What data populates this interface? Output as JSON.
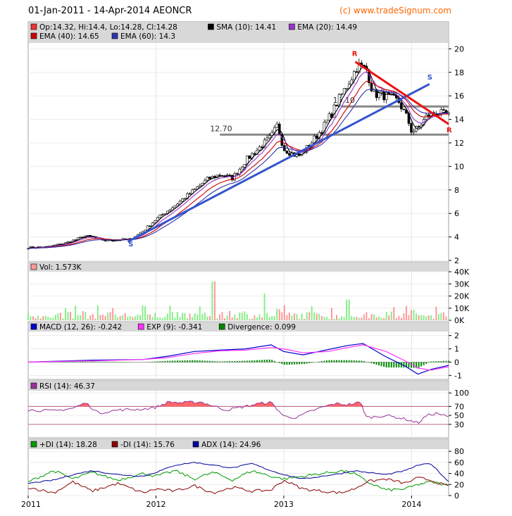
{
  "header": {
    "title": "01-Jan-2011 - 14-Apr-2014 AEONCR",
    "source": "(c) www.tradeSignum.com"
  },
  "colors": {
    "panel_bg": "#ffffff",
    "legend_bg": "#d8d8d8",
    "border": "#a0a0a0",
    "price_up": "#ffffff",
    "price_down": "#000000",
    "sma10": "#000000",
    "ema20": "#9933cc",
    "ema40": "#cc0000",
    "ema60": "#3333aa",
    "support": "#3355cc",
    "resistance": "#ee1111",
    "hline": "#888888",
    "vol_up": "#88ee88",
    "vol_down": "#ff9999",
    "macd": "#0000cc",
    "exp": "#ff33ff",
    "div": "#008800",
    "rsi": "#993399",
    "rsi_fill": "#ff6666",
    "plus_di": "#009900",
    "minus_di": "#880000",
    "adx": "#000099"
  },
  "x_axis": {
    "labels": [
      "2011",
      "2012",
      "2013",
      "2014"
    ]
  },
  "chart_data": [
    {
      "type": "candlestick",
      "panel": "price",
      "legend": [
        {
          "label": "Op:14.32, Hi:14.4, Lo:14.28, Cl:14.28",
          "color": "#ee3333"
        },
        {
          "label": "SMA (10): 14.41",
          "color": "#000000"
        },
        {
          "label": "EMA (20): 14.49",
          "color": "#9933cc"
        },
        {
          "label": "EMA (40): 14.65",
          "color": "#cc0000"
        },
        {
          "label": "EMA (60): 14.3",
          "color": "#3333aa"
        }
      ],
      "yticks": [
        "2",
        "4",
        "6",
        "8",
        "10",
        "12",
        "14",
        "16",
        "18",
        "20"
      ],
      "ylim": [
        2,
        20.5
      ],
      "x_range": [
        2011.0,
        2014.29
      ],
      "close_path": [
        [
          2011.0,
          3.1
        ],
        [
          2011.15,
          3.15
        ],
        [
          2011.3,
          3.5
        ],
        [
          2011.45,
          4.1
        ],
        [
          2011.6,
          3.7
        ],
        [
          2011.8,
          3.8
        ],
        [
          2011.9,
          4.5
        ],
        [
          2012.0,
          5.5
        ],
        [
          2012.15,
          6.7
        ],
        [
          2012.3,
          8.0
        ],
        [
          2012.4,
          8.9
        ],
        [
          2012.5,
          9.3
        ],
        [
          2012.6,
          9.0
        ],
        [
          2012.7,
          10.5
        ],
        [
          2012.8,
          11.5
        ],
        [
          2012.9,
          12.5
        ],
        [
          2012.95,
          13.5
        ],
        [
          2013.0,
          11.5
        ],
        [
          2013.08,
          11.0
        ],
        [
          2013.12,
          10.9
        ],
        [
          2013.2,
          11.8
        ],
        [
          2013.3,
          13.2
        ],
        [
          2013.38,
          14.6
        ],
        [
          2013.42,
          15.5
        ],
        [
          2013.5,
          17.0
        ],
        [
          2013.58,
          18.6
        ],
        [
          2013.65,
          18.2
        ],
        [
          2013.7,
          16.2
        ],
        [
          2013.8,
          16.0
        ],
        [
          2013.9,
          15.5
        ],
        [
          2013.97,
          14.0
        ],
        [
          2014.0,
          13.0
        ],
        [
          2014.05,
          13.2
        ],
        [
          2014.12,
          14.3
        ],
        [
          2014.2,
          14.6
        ],
        [
          2014.29,
          14.28
        ]
      ],
      "lines": [
        {
          "name": "15.10",
          "value": 15.1
        },
        {
          "name": "12.70",
          "value": 12.7
        }
      ],
      "annotations": [
        {
          "text": "S",
          "x": 2011.8,
          "y": 3.2
        },
        {
          "text": "S",
          "x": 2014.14,
          "y": 17.4
        },
        {
          "text": "R",
          "x": 2013.55,
          "y": 19.4
        },
        {
          "text": "R",
          "x": 2014.29,
          "y": 12.9
        }
      ]
    },
    {
      "type": "bar",
      "panel": "volume",
      "legend": [
        {
          "label": "Vol: 1.573K",
          "color": "#ff9999"
        }
      ],
      "yticks": [
        "0K",
        "10K",
        "20K",
        "30K",
        "40K"
      ],
      "ylim": [
        0,
        40
      ],
      "peaks": [
        {
          "x": 2012.45,
          "value": 32
        },
        {
          "x": 2012.85,
          "value": 22
        },
        {
          "x": 2013.5,
          "value": 17
        }
      ]
    },
    {
      "type": "line",
      "panel": "macd",
      "legend": [
        {
          "label": "MACD (12, 26): -0.242",
          "color": "#0000cc"
        },
        {
          "label": "EXP (9): -0.341",
          "color": "#ff33ff"
        },
        {
          "label": "Divergence: 0.099",
          "color": "#008800"
        }
      ],
      "yticks": [
        "-1",
        "0",
        "1",
        "2"
      ],
      "ylim": [
        -1.3,
        2.3
      ],
      "series": [
        {
          "name": "MACD",
          "points": [
            [
              2011.0,
              0.0
            ],
            [
              2011.5,
              0.15
            ],
            [
              2011.9,
              0.2
            ],
            [
              2012.1,
              0.45
            ],
            [
              2012.3,
              0.8
            ],
            [
              2012.5,
              0.9
            ],
            [
              2012.7,
              1.0
            ],
            [
              2012.9,
              1.3
            ],
            [
              2013.0,
              0.8
            ],
            [
              2013.15,
              0.55
            ],
            [
              2013.35,
              0.95
            ],
            [
              2013.5,
              1.25
            ],
            [
              2013.62,
              1.4
            ],
            [
              2013.8,
              0.4
            ],
            [
              2013.95,
              -0.3
            ],
            [
              2014.05,
              -0.9
            ],
            [
              2014.15,
              -0.55
            ],
            [
              2014.29,
              -0.24
            ]
          ]
        },
        {
          "name": "EXP",
          "points": [
            [
              2011.0,
              0.0
            ],
            [
              2011.5,
              0.1
            ],
            [
              2011.9,
              0.2
            ],
            [
              2012.1,
              0.35
            ],
            [
              2012.3,
              0.65
            ],
            [
              2012.5,
              0.85
            ],
            [
              2012.7,
              0.9
            ],
            [
              2012.9,
              1.1
            ],
            [
              2013.0,
              1.0
            ],
            [
              2013.15,
              0.7
            ],
            [
              2013.35,
              0.8
            ],
            [
              2013.5,
              1.1
            ],
            [
              2013.62,
              1.3
            ],
            [
              2013.8,
              0.8
            ],
            [
              2013.95,
              0.1
            ],
            [
              2014.05,
              -0.45
            ],
            [
              2014.15,
              -0.6
            ],
            [
              2014.29,
              -0.34
            ]
          ]
        }
      ]
    },
    {
      "type": "line",
      "panel": "rsi",
      "legend": [
        {
          "label": "RSI (14): 46.37",
          "color": "#993399"
        }
      ],
      "yticks": [
        "30",
        "50",
        "70",
        "100"
      ],
      "ylim": [
        0,
        105
      ],
      "levels": [
        30,
        70
      ],
      "points": [
        [
          2011.0,
          62
        ],
        [
          2011.2,
          60
        ],
        [
          2011.35,
          66
        ],
        [
          2011.45,
          78
        ],
        [
          2011.55,
          55
        ],
        [
          2011.7,
          62
        ],
        [
          2011.9,
          64
        ],
        [
          2012.0,
          68
        ],
        [
          2012.1,
          80
        ],
        [
          2012.2,
          78
        ],
        [
          2012.35,
          80
        ],
        [
          2012.45,
          71
        ],
        [
          2012.55,
          62
        ],
        [
          2012.7,
          70
        ],
        [
          2012.8,
          76
        ],
        [
          2012.9,
          79
        ],
        [
          2013.0,
          48
        ],
        [
          2013.1,
          45
        ],
        [
          2013.2,
          58
        ],
        [
          2013.3,
          68
        ],
        [
          2013.4,
          76
        ],
        [
          2013.5,
          74
        ],
        [
          2013.6,
          79
        ],
        [
          2013.65,
          45
        ],
        [
          2013.8,
          50
        ],
        [
          2013.95,
          42
        ],
        [
          2014.05,
          33
        ],
        [
          2014.12,
          50
        ],
        [
          2014.2,
          55
        ],
        [
          2014.29,
          46
        ]
      ]
    },
    {
      "type": "line",
      "panel": "dmi",
      "legend": [
        {
          "label": "+DI (14): 18.28",
          "color": "#009900"
        },
        {
          "label": "-DI (14): 15.76",
          "color": "#880000"
        },
        {
          "label": "ADX (14): 24.96",
          "color": "#000099"
        }
      ],
      "yticks": [
        "0",
        "20",
        "40",
        "60",
        "80"
      ],
      "ylim": [
        0,
        84
      ],
      "series": [
        {
          "name": "+DI",
          "points": [
            [
              2011.0,
              25
            ],
            [
              2011.2,
              45
            ],
            [
              2011.35,
              30
            ],
            [
              2011.5,
              42
            ],
            [
              2011.7,
              28
            ],
            [
              2011.9,
              40
            ],
            [
              2012.0,
              35
            ],
            [
              2012.15,
              45
            ],
            [
              2012.3,
              30
            ],
            [
              2012.45,
              42
            ],
            [
              2012.6,
              28
            ],
            [
              2012.75,
              45
            ],
            [
              2012.9,
              35
            ],
            [
              2013.0,
              30
            ],
            [
              2013.15,
              35
            ],
            [
              2013.3,
              40
            ],
            [
              2013.45,
              45
            ],
            [
              2013.55,
              40
            ],
            [
              2013.65,
              25
            ],
            [
              2013.8,
              10
            ],
            [
              2013.95,
              12
            ],
            [
              2014.05,
              20
            ],
            [
              2014.15,
              25
            ],
            [
              2014.29,
              18
            ]
          ]
        },
        {
          "name": "-DI",
          "points": [
            [
              2011.0,
              15
            ],
            [
              2011.2,
              5
            ],
            [
              2011.35,
              25
            ],
            [
              2011.5,
              8
            ],
            [
              2011.7,
              22
            ],
            [
              2011.9,
              5
            ],
            [
              2012.0,
              12
            ],
            [
              2012.15,
              8
            ],
            [
              2012.3,
              18
            ],
            [
              2012.45,
              5
            ],
            [
              2012.6,
              15
            ],
            [
              2012.75,
              8
            ],
            [
              2012.9,
              10
            ],
            [
              2013.0,
              28
            ],
            [
              2013.15,
              12
            ],
            [
              2013.3,
              8
            ],
            [
              2013.45,
              5
            ],
            [
              2013.55,
              12
            ],
            [
              2013.65,
              25
            ],
            [
              2013.8,
              30
            ],
            [
              2013.95,
              22
            ],
            [
              2014.05,
              32
            ],
            [
              2014.15,
              28
            ],
            [
              2014.29,
              16
            ]
          ]
        },
        {
          "name": "ADX",
          "points": [
            [
              2011.0,
              22
            ],
            [
              2011.2,
              28
            ],
            [
              2011.35,
              38
            ],
            [
              2011.5,
              45
            ],
            [
              2011.7,
              38
            ],
            [
              2011.9,
              35
            ],
            [
              2012.0,
              42
            ],
            [
              2012.15,
              55
            ],
            [
              2012.3,
              60
            ],
            [
              2012.45,
              55
            ],
            [
              2012.6,
              50
            ],
            [
              2012.75,
              58
            ],
            [
              2012.9,
              45
            ],
            [
              2013.0,
              38
            ],
            [
              2013.15,
              30
            ],
            [
              2013.3,
              35
            ],
            [
              2013.45,
              40
            ],
            [
              2013.55,
              45
            ],
            [
              2013.65,
              42
            ],
            [
              2013.8,
              38
            ],
            [
              2013.95,
              45
            ],
            [
              2014.05,
              55
            ],
            [
              2014.15,
              58
            ],
            [
              2014.29,
              25
            ]
          ]
        }
      ]
    }
  ]
}
